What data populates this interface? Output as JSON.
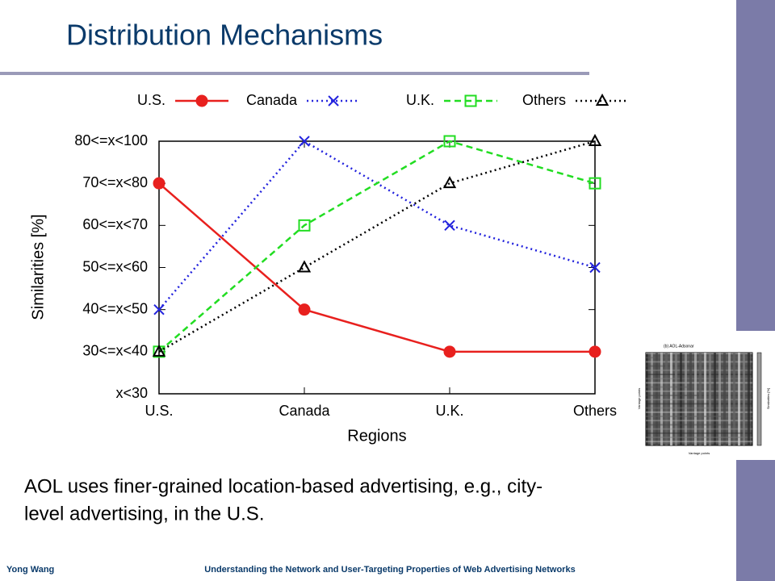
{
  "slide_title": "Distribution Mechanisms",
  "body_lines": [
    "AOL uses finer-grained location-based advertising, e.g., city-",
    "level advertising, in the U.S."
  ],
  "footer_left": "Yong Wang",
  "footer_center": "Understanding the Network and User-Targeting Properties of Web Advertising Networks",
  "thumbnail": {
    "title": "(b) AOL-Adsonar",
    "x_label": "Vantage points",
    "y_label": "Vantage points",
    "bar_label": "Similarities [%]"
  },
  "chart_data": {
    "type": "line",
    "x_label": "Regions",
    "y_label": "Similarities [%]",
    "categories": [
      "U.S.",
      "Canada",
      "U.K.",
      "Others"
    ],
    "ylim": [
      0,
      6
    ],
    "yticks": [
      {
        "value": 0,
        "label": "x<30"
      },
      {
        "value": 1,
        "label": "30<=x<40"
      },
      {
        "value": 2,
        "label": "40<=x<50"
      },
      {
        "value": 3,
        "label": "50<=x<60"
      },
      {
        "value": 4,
        "label": "60<=x<70"
      },
      {
        "value": 5,
        "label": "70<=x<80"
      },
      {
        "value": 6,
        "label": "80<=x<100"
      }
    ],
    "series": [
      {
        "name": "U.S.",
        "color": "#e8201e",
        "marker": "circle",
        "dash": "solid",
        "values": [
          5,
          2,
          1,
          1
        ]
      },
      {
        "name": "Canada",
        "color": "#2222dd",
        "marker": "x",
        "dash": "dotted",
        "values": [
          2,
          6,
          4,
          3
        ]
      },
      {
        "name": "U.K.",
        "color": "#22dd22",
        "marker": "square",
        "dash": "dashed",
        "values": [
          1,
          4,
          6,
          5
        ]
      },
      {
        "name": "Others",
        "color": "#000000",
        "marker": "triangle",
        "dash": "dotted",
        "values": [
          1,
          3,
          5,
          6
        ]
      }
    ]
  }
}
